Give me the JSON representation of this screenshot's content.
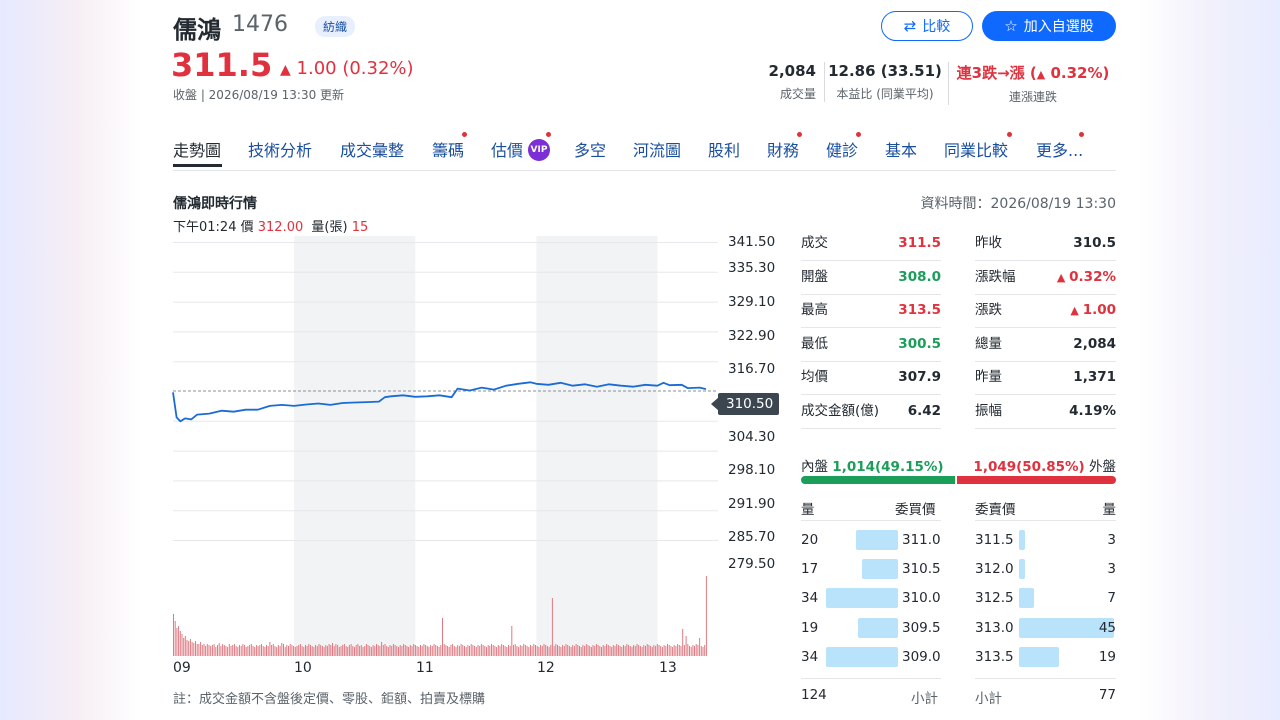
{
  "header": {
    "name": "儒鴻",
    "code": "1476",
    "industry": "紡織",
    "price": "311.5",
    "change": "1.00 (0.32%)",
    "update_note": "收盤 | 2026/08/19 13:30 更新",
    "compare_label": "比較",
    "watchlist_label": "加入自選股",
    "stats": [
      {
        "value": "2,084",
        "label": "成交量"
      },
      {
        "value": "12.86 (33.51)",
        "label": "本益比 (同業平均)"
      },
      {
        "value_prefix": "連3跌→漲 (",
        "value_change": "0.32%)",
        "label": "連漲連跌"
      }
    ]
  },
  "tabs": [
    "走勢圖",
    "技術分析",
    "成交彙整",
    "籌碼",
    "估價",
    "多空",
    "河流圖",
    "股利",
    "財務",
    "健診",
    "基本",
    "同業比較",
    "更多..."
  ],
  "vip_label": "VIP",
  "section": {
    "title": "儒鴻即時行情",
    "data_time": "資料時間：2026/08/19 13:30",
    "hover": {
      "time": "下午01:24",
      "price_label": "價",
      "price": "312.00",
      "volume_label": "量(張)",
      "volume": "15"
    }
  },
  "chart_data": {
    "type": "line",
    "x_ticks": [
      "09",
      "10",
      "11",
      "12",
      "13"
    ],
    "y_ticks": [
      "341.50",
      "335.30",
      "329.10",
      "322.90",
      "316.70",
      "304.30",
      "298.10",
      "291.90",
      "285.70",
      "279.50"
    ],
    "ylim": [
      279.5,
      341.5
    ],
    "reference_price": "310.50",
    "price_series": [
      [
        9.0,
        310.2
      ],
      [
        9.03,
        305.0
      ],
      [
        9.06,
        304.2
      ],
      [
        9.1,
        304.8
      ],
      [
        9.15,
        304.6
      ],
      [
        9.2,
        305.6
      ],
      [
        9.3,
        305.8
      ],
      [
        9.4,
        306.4
      ],
      [
        9.5,
        306.2
      ],
      [
        9.6,
        306.6
      ],
      [
        9.7,
        306.6
      ],
      [
        9.8,
        307.4
      ],
      [
        9.9,
        307.6
      ],
      [
        10.0,
        307.4
      ],
      [
        10.1,
        307.7
      ],
      [
        10.2,
        307.9
      ],
      [
        10.3,
        307.6
      ],
      [
        10.4,
        308.0
      ],
      [
        10.5,
        308.1
      ],
      [
        10.6,
        308.2
      ],
      [
        10.7,
        308.3
      ],
      [
        10.75,
        309.2
      ],
      [
        10.8,
        309.4
      ],
      [
        10.9,
        309.6
      ],
      [
        11.0,
        309.3
      ],
      [
        11.1,
        309.4
      ],
      [
        11.2,
        309.6
      ],
      [
        11.3,
        309.2
      ],
      [
        11.35,
        311.0
      ],
      [
        11.45,
        310.6
      ],
      [
        11.55,
        311.2
      ],
      [
        11.65,
        310.8
      ],
      [
        11.75,
        311.6
      ],
      [
        11.85,
        312.0
      ],
      [
        11.95,
        312.3
      ],
      [
        12.0,
        312.0
      ],
      [
        12.1,
        311.8
      ],
      [
        12.2,
        312.2
      ],
      [
        12.3,
        311.6
      ],
      [
        12.4,
        311.9
      ],
      [
        12.5,
        311.4
      ],
      [
        12.6,
        311.9
      ],
      [
        12.7,
        311.6
      ],
      [
        12.8,
        311.4
      ],
      [
        12.9,
        311.8
      ],
      [
        13.0,
        311.6
      ],
      [
        13.05,
        312.2
      ],
      [
        13.1,
        311.7
      ],
      [
        13.2,
        311.8
      ],
      [
        13.25,
        311.1
      ],
      [
        13.35,
        311.2
      ],
      [
        13.4,
        310.9
      ]
    ],
    "volume_bars": [
      42,
      35,
      28,
      30,
      25,
      22,
      18,
      20,
      16,
      15,
      17,
      14,
      13,
      15,
      12,
      12,
      14,
      11,
      12,
      10,
      12,
      11,
      10,
      11,
      12,
      9,
      11,
      13,
      10,
      12,
      11,
      10,
      9,
      12,
      10,
      11,
      12,
      10,
      9,
      11,
      10,
      12,
      11,
      9,
      10,
      11,
      12,
      10,
      9,
      11,
      10,
      11,
      12,
      10,
      9,
      11,
      10,
      14,
      11,
      12,
      10,
      9,
      11,
      10,
      13,
      12,
      9,
      11,
      10,
      12,
      11,
      10,
      9,
      10,
      11,
      12,
      10,
      9,
      11,
      10,
      12,
      11,
      10,
      9,
      11,
      10,
      12,
      11,
      10,
      9,
      11,
      10,
      12,
      11,
      13,
      10,
      12,
      11,
      9,
      10,
      11,
      12,
      10,
      9,
      11,
      12,
      10,
      9,
      11,
      12,
      10,
      11,
      9,
      10,
      12,
      11,
      10,
      9,
      11,
      10,
      12,
      11,
      10,
      14,
      11,
      12,
      10,
      9,
      11,
      10,
      12,
      11,
      10,
      9,
      11,
      10,
      12,
      11,
      10,
      9,
      11,
      10,
      12,
      11,
      10,
      9,
      11,
      10,
      12,
      11,
      10,
      9,
      11,
      10,
      12,
      11,
      10,
      9,
      11,
      38,
      12,
      11,
      10,
      9,
      11,
      12,
      10,
      9,
      11,
      10,
      12,
      11,
      10,
      9,
      11,
      10,
      12,
      11,
      10,
      9,
      11,
      10,
      12,
      11,
      10,
      9,
      11,
      10,
      12,
      11,
      10,
      9,
      11,
      10,
      12,
      11,
      10,
      9,
      11,
      10,
      30,
      11,
      12,
      10,
      9,
      11,
      10,
      12,
      11,
      10,
      9,
      11,
      10,
      12,
      11,
      10,
      9,
      11,
      10,
      12,
      11,
      10,
      9,
      11,
      58,
      10,
      12,
      11,
      10,
      9,
      11,
      10,
      12,
      11,
      10,
      9,
      11,
      10,
      12,
      11,
      10,
      9,
      11,
      10,
      12,
      11,
      10,
      9,
      11,
      10,
      12,
      11,
      10,
      9,
      11,
      10,
      12,
      11,
      10,
      9,
      11,
      10,
      12,
      11,
      10,
      9,
      11,
      10,
      12,
      11,
      10,
      9,
      11,
      10,
      12,
      11,
      10,
      9,
      11,
      10,
      12,
      11,
      10,
      9,
      11,
      10,
      12,
      11,
      10,
      9,
      11,
      10,
      12,
      11,
      10,
      9,
      11,
      10,
      12,
      11,
      10,
      27,
      11,
      20,
      12,
      10,
      9,
      11,
      10,
      12,
      11,
      18,
      10,
      9,
      11,
      80
    ]
  },
  "quote": {
    "left": [
      {
        "label": "成交",
        "value": "311.5",
        "color": "red"
      },
      {
        "label": "開盤",
        "value": "308.0",
        "color": "green"
      },
      {
        "label": "最高",
        "value": "313.5",
        "color": "red"
      },
      {
        "label": "最低",
        "value": "300.5",
        "color": "green"
      },
      {
        "label": "均價",
        "value": "307.9",
        "color": "black"
      },
      {
        "label": "成交金額(億)",
        "value": "6.42",
        "color": "black"
      }
    ],
    "right": [
      {
        "label": "昨收",
        "value": "310.5",
        "color": "black"
      },
      {
        "label": "漲跌幅",
        "value": "0.32%",
        "color": "red",
        "arrow": true
      },
      {
        "label": "漲跌",
        "value": "1.00",
        "color": "red",
        "arrow": true
      },
      {
        "label": "總量",
        "value": "2,084",
        "color": "black"
      },
      {
        "label": "昨量",
        "value": "1,371",
        "color": "black"
      },
      {
        "label": "振幅",
        "value": "4.19%",
        "color": "black"
      }
    ]
  },
  "inout": {
    "inner_label": "內盤",
    "inner_value": "1,014(49.15%)",
    "outer_value": "1,049(50.85%)",
    "outer_label": "外盤",
    "inner_fraction": 0.4915
  },
  "orderbook": {
    "headers": {
      "bid_qty": "量",
      "bid_price": "委買價",
      "ask_price": "委賣價",
      "ask_qty": "量"
    },
    "bids": [
      {
        "qty": "20",
        "price": "311.0",
        "q": 20
      },
      {
        "qty": "17",
        "price": "310.5",
        "q": 17
      },
      {
        "qty": "34",
        "price": "310.0",
        "q": 34
      },
      {
        "qty": "19",
        "price": "309.5",
        "q": 19
      },
      {
        "qty": "34",
        "price": "309.0",
        "q": 34
      }
    ],
    "asks": [
      {
        "price": "311.5",
        "qty": "3",
        "q": 3
      },
      {
        "price": "312.0",
        "qty": "3",
        "q": 3
      },
      {
        "price": "312.5",
        "qty": "7",
        "q": 7
      },
      {
        "price": "313.0",
        "qty": "45",
        "q": 45
      },
      {
        "price": "313.5",
        "qty": "19",
        "q": 19
      }
    ],
    "bid_total": "124",
    "subtotal_label": "小計",
    "ask_total": "77"
  },
  "footnote": "註：成交金額不含盤後定價、零股、鉅額、拍賣及標購",
  "colors": {
    "up": "#e0323e",
    "down": "#1b9e5a",
    "line": "#1a6bd6",
    "accent": "#0f69ff"
  }
}
